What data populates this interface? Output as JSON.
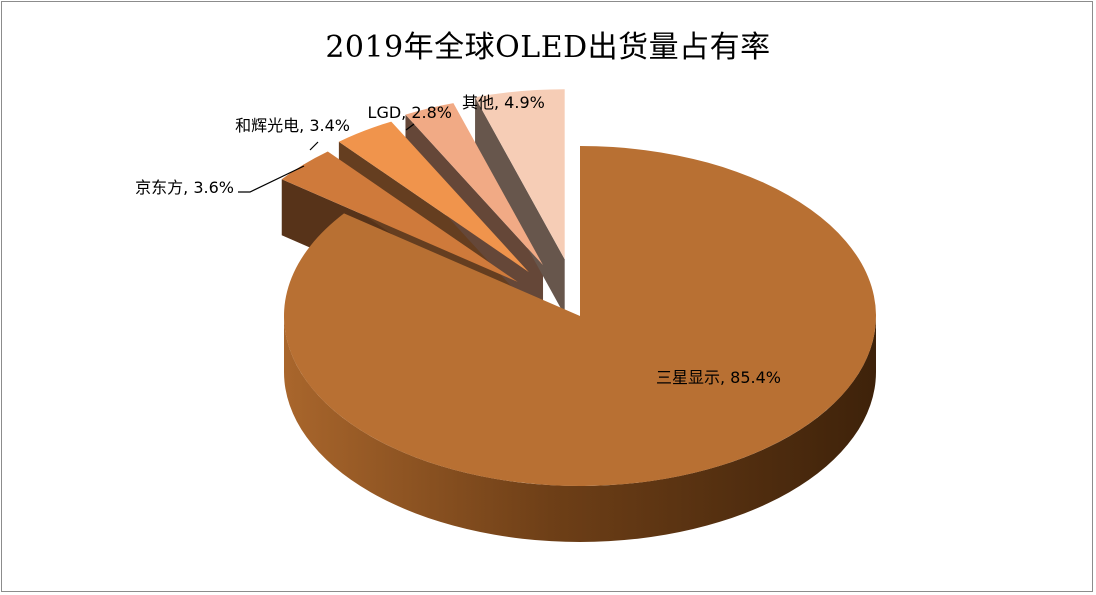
{
  "chart_data": {
    "type": "pie",
    "title": "2019年全球OLED出货量占有率",
    "three_d": true,
    "exploded": true,
    "slices": [
      {
        "label": "三星显示",
        "value": 85.4,
        "value_label": "85.4%",
        "color": "#b87033"
      },
      {
        "label": "京东方",
        "value": 3.6,
        "value_label": "3.6%",
        "color": "#cf7a3b"
      },
      {
        "label": "和辉光电",
        "value": 3.4,
        "value_label": "3.4%",
        "color": "#f0944c"
      },
      {
        "label": "LGD",
        "value": 2.8,
        "value_label": "2.8%",
        "color": "#f1aa85"
      },
      {
        "label": "其他",
        "value": 4.9,
        "value_label": "4.9%",
        "color": "#f6cdb6"
      }
    ]
  }
}
